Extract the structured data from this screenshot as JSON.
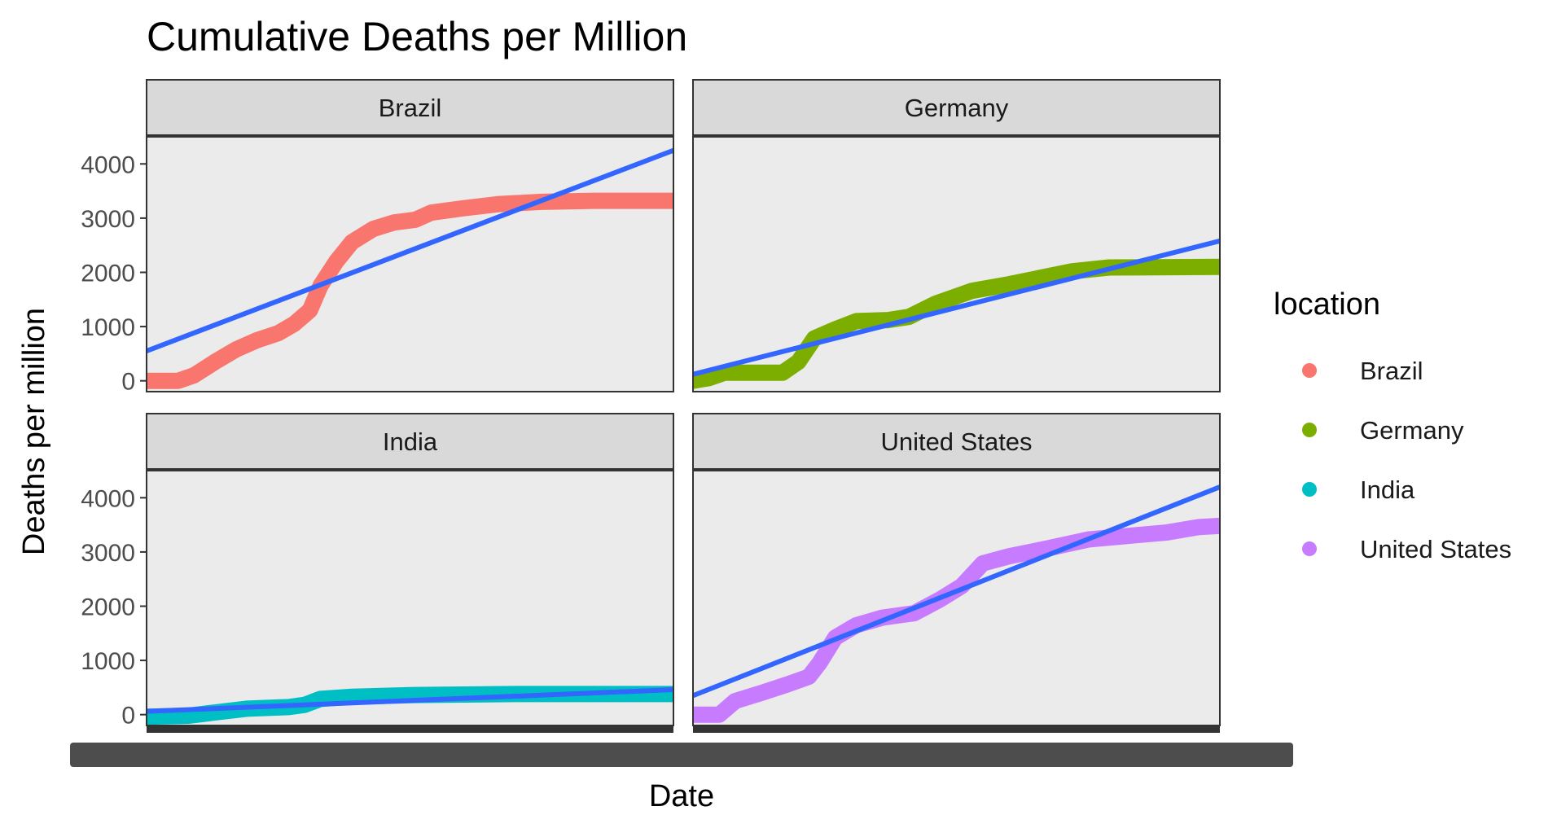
{
  "chart_data": {
    "type": "line",
    "title": "Cumulative Deaths per Million",
    "xlabel": "Date",
    "ylabel": "Deaths per million",
    "ylim": [
      -200,
      4500
    ],
    "yticks": [
      0,
      1000,
      2000,
      3000,
      4000
    ],
    "grid": false,
    "facet_by": "location",
    "legend": {
      "title": "location",
      "position": "right",
      "entries": [
        {
          "label": "Brazil",
          "color": "#F8766D"
        },
        {
          "label": "Germany",
          "color": "#7CAE00"
        },
        {
          "label": "India",
          "color": "#00BFC4"
        },
        {
          "label": "United States",
          "color": "#C77CFF"
        }
      ]
    },
    "trend_color": "#3366FF",
    "x_domain": [
      0,
      1
    ],
    "panels": [
      {
        "location": "Brazil",
        "color": "#F8766D",
        "series": [
          [
            0.0,
            0
          ],
          [
            0.06,
            0
          ],
          [
            0.09,
            100
          ],
          [
            0.13,
            350
          ],
          [
            0.17,
            580
          ],
          [
            0.21,
            750
          ],
          [
            0.25,
            880
          ],
          [
            0.28,
            1050
          ],
          [
            0.31,
            1300
          ],
          [
            0.33,
            1750
          ],
          [
            0.36,
            2200
          ],
          [
            0.39,
            2560
          ],
          [
            0.43,
            2800
          ],
          [
            0.47,
            2920
          ],
          [
            0.51,
            2970
          ],
          [
            0.54,
            3100
          ],
          [
            0.6,
            3180
          ],
          [
            0.67,
            3260
          ],
          [
            0.75,
            3300
          ],
          [
            0.85,
            3320
          ],
          [
            1.0,
            3320
          ]
        ],
        "trend": [
          [
            0,
            550
          ],
          [
            1,
            4250
          ]
        ]
      },
      {
        "location": "Germany",
        "color": "#7CAE00",
        "series": [
          [
            0.0,
            0
          ],
          [
            0.03,
            50
          ],
          [
            0.06,
            150
          ],
          [
            0.17,
            150
          ],
          [
            0.2,
            350
          ],
          [
            0.23,
            780
          ],
          [
            0.27,
            950
          ],
          [
            0.31,
            1100
          ],
          [
            0.37,
            1120
          ],
          [
            0.41,
            1180
          ],
          [
            0.46,
            1420
          ],
          [
            0.53,
            1660
          ],
          [
            0.6,
            1780
          ],
          [
            0.66,
            1900
          ],
          [
            0.72,
            2020
          ],
          [
            0.79,
            2090
          ],
          [
            1.0,
            2100
          ]
        ],
        "trend": [
          [
            0,
            120
          ],
          [
            1,
            2580
          ]
        ]
      },
      {
        "location": "India",
        "color": "#00BFC4",
        "series": [
          [
            0.0,
            -40
          ],
          [
            0.08,
            -20
          ],
          [
            0.13,
            40
          ],
          [
            0.19,
            110
          ],
          [
            0.27,
            140
          ],
          [
            0.3,
            180
          ],
          [
            0.33,
            290
          ],
          [
            0.39,
            330
          ],
          [
            0.5,
            360
          ],
          [
            0.7,
            380
          ],
          [
            1.0,
            380
          ]
        ],
        "trend": [
          [
            0,
            60
          ],
          [
            1,
            460
          ]
        ]
      },
      {
        "location": "United States",
        "color": "#C77CFF",
        "series": [
          [
            0.0,
            0
          ],
          [
            0.05,
            0
          ],
          [
            0.08,
            250
          ],
          [
            0.13,
            400
          ],
          [
            0.18,
            560
          ],
          [
            0.22,
            700
          ],
          [
            0.24,
            950
          ],
          [
            0.27,
            1420
          ],
          [
            0.31,
            1650
          ],
          [
            0.36,
            1790
          ],
          [
            0.42,
            1870
          ],
          [
            0.47,
            2130
          ],
          [
            0.51,
            2370
          ],
          [
            0.55,
            2790
          ],
          [
            0.6,
            2920
          ],
          [
            0.67,
            3060
          ],
          [
            0.75,
            3230
          ],
          [
            0.83,
            3300
          ],
          [
            0.9,
            3360
          ],
          [
            0.96,
            3460
          ],
          [
            1.0,
            3480
          ]
        ],
        "trend": [
          [
            0,
            350
          ],
          [
            1,
            4200
          ]
        ]
      }
    ]
  }
}
